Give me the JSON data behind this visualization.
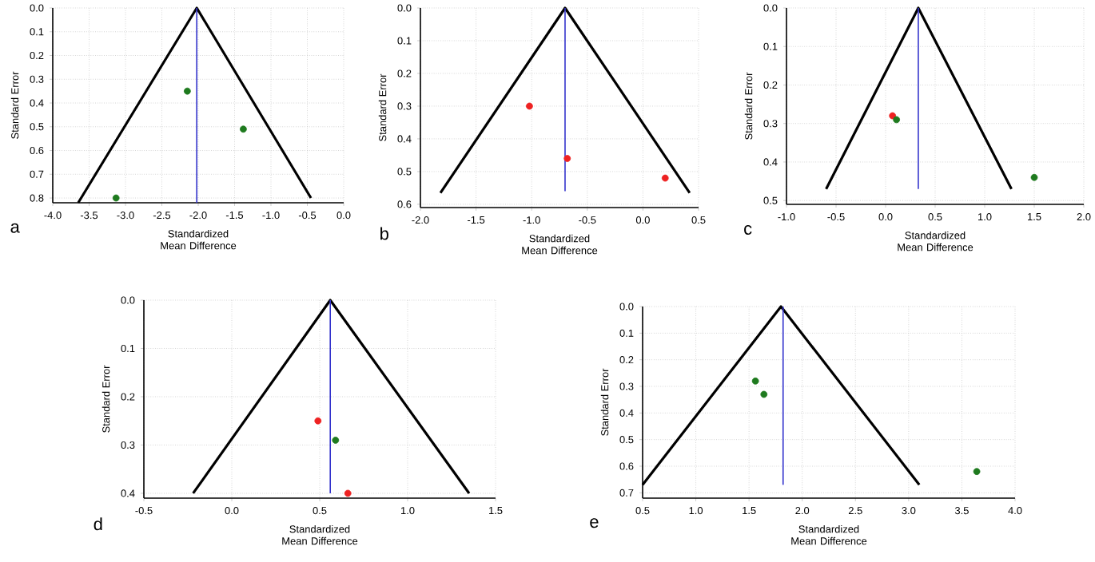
{
  "chart_data": [
    {
      "type": "scatter",
      "xlabel": "Standardized Mean Difference",
      "ylabel": "Standard Error",
      "annotations": [
        "a"
      ],
      "grid": true,
      "xlim": [
        -4.0,
        0.0
      ],
      "xticks": [
        {
          "value": -4.0,
          "label": "-4.0"
        },
        {
          "value": -3.5,
          "label": "-3.5"
        },
        {
          "value": -3.0,
          "label": "-3.0"
        },
        {
          "value": -2.5,
          "label": "-2.5"
        },
        {
          "value": -2.0,
          "label": "-2.0"
        },
        {
          "value": -1.5,
          "label": "-1.5"
        },
        {
          "value": -1.0,
          "label": "-1.0"
        },
        {
          "value": -0.5,
          "label": "-0.5"
        },
        {
          "value": 0.0,
          "label": "0.0"
        }
      ],
      "ylim": [
        0.82,
        0.0
      ],
      "yticks": [
        {
          "value": 0.0,
          "label": "0.0"
        },
        {
          "value": 0.1,
          "label": "0.1"
        },
        {
          "value": 0.2,
          "label": "0.2"
        },
        {
          "value": 0.3,
          "label": "0.3"
        },
        {
          "value": 0.4,
          "label": "0.4"
        },
        {
          "value": 0.5,
          "label": "0.5"
        },
        {
          "value": 0.6,
          "label": "0.6"
        },
        {
          "value": 0.7,
          "label": "0.7"
        },
        {
          "value": 0.8,
          "label": "0.8"
        }
      ],
      "series": [
        {
          "type": "line",
          "marker": "none",
          "color": "#000000",
          "x": [
            -3.65,
            -2.02,
            -0.45
          ],
          "values": [
            0.82,
            0.0,
            0.8
          ]
        },
        {
          "type": "line",
          "marker": "none",
          "color": "#3333cc",
          "x": [
            -2.02,
            -2.02
          ],
          "values": [
            0.0,
            0.82
          ]
        },
        {
          "type": "scatter",
          "x": [
            -2.15,
            -1.38,
            -3.13
          ],
          "values": [
            0.35,
            0.51,
            0.8
          ],
          "colors": [
            "#1e7a1e",
            "#1e7a1e",
            "#1e7a1e"
          ]
        }
      ]
    },
    {
      "type": "scatter",
      "xlabel": "Standardized Mean Difference",
      "ylabel": "Standard Error",
      "annotations": [
        "b"
      ],
      "grid": true,
      "xlim": [
        -2.0,
        0.5
      ],
      "xticks": [
        {
          "value": -2.0,
          "label": "-2.0"
        },
        {
          "value": -1.5,
          "label": "-1.5"
        },
        {
          "value": -1.0,
          "label": "-1.0"
        },
        {
          "value": -0.5,
          "label": "-0.5"
        },
        {
          "value": 0.0,
          "label": "0.0"
        },
        {
          "value": 0.5,
          "label": "0.5"
        }
      ],
      "ylim": [
        0.61,
        0.0
      ],
      "yticks": [
        {
          "value": 0.0,
          "label": "0.0"
        },
        {
          "value": 0.1,
          "label": "0.1"
        },
        {
          "value": 0.2,
          "label": "0.2"
        },
        {
          "value": 0.3,
          "label": "0.3"
        },
        {
          "value": 0.4,
          "label": "0.4"
        },
        {
          "value": 0.5,
          "label": "0.5"
        },
        {
          "value": 0.6,
          "label": "0.6"
        }
      ],
      "series": [
        {
          "type": "line",
          "marker": "none",
          "color": "#000000",
          "x": [
            -1.82,
            -0.7,
            0.42
          ],
          "values": [
            0.565,
            0.0,
            0.565
          ]
        },
        {
          "type": "line",
          "marker": "none",
          "color": "#3333cc",
          "x": [
            -0.7,
            -0.7
          ],
          "values": [
            0.0,
            0.56
          ]
        },
        {
          "type": "scatter",
          "x": [
            -1.02,
            -0.68,
            0.2
          ],
          "values": [
            0.3,
            0.46,
            0.52
          ],
          "colors": [
            "#ee2222",
            "#ee2222",
            "#ee2222"
          ]
        }
      ]
    },
    {
      "type": "scatter",
      "xlabel": "Standardized Mean Difference",
      "ylabel": "Standard Error",
      "annotations": [
        "c"
      ],
      "grid": true,
      "xlim": [
        -1.0,
        2.0
      ],
      "xticks": [
        {
          "value": -1.0,
          "label": "-1.0"
        },
        {
          "value": -0.5,
          "label": "-0.5"
        },
        {
          "value": 0.0,
          "label": "0.0"
        },
        {
          "value": 0.5,
          "label": "0.5"
        },
        {
          "value": 1.0,
          "label": "1.0"
        },
        {
          "value": 1.5,
          "label": "1.5"
        },
        {
          "value": 2.0,
          "label": "2.0"
        }
      ],
      "ylim": [
        0.51,
        0.0
      ],
      "yticks": [
        {
          "value": 0.0,
          "label": "0.0"
        },
        {
          "value": 0.1,
          "label": "0.1"
        },
        {
          "value": 0.2,
          "label": "0.2"
        },
        {
          "value": 0.3,
          "label": "0.3"
        },
        {
          "value": 0.4,
          "label": "0.4"
        },
        {
          "value": 0.5,
          "label": "0.5"
        }
      ],
      "series": [
        {
          "type": "line",
          "marker": "none",
          "color": "#000000",
          "x": [
            -0.6,
            0.33,
            1.27
          ],
          "values": [
            0.47,
            0.0,
            0.47
          ]
        },
        {
          "type": "line",
          "marker": "none",
          "color": "#3333cc",
          "x": [
            0.33,
            0.33
          ],
          "values": [
            0.0,
            0.47
          ]
        },
        {
          "type": "scatter",
          "x": [
            0.07,
            0.11,
            1.5
          ],
          "values": [
            0.28,
            0.29,
            0.44
          ],
          "colors": [
            "#ee2222",
            "#1e7a1e",
            "#1e7a1e"
          ]
        }
      ]
    },
    {
      "type": "scatter",
      "xlabel": "Standardized Mean Difference",
      "ylabel": "Standard Error",
      "annotations": [
        "d"
      ],
      "grid": true,
      "xlim": [
        -0.5,
        1.5
      ],
      "xticks": [
        {
          "value": -0.5,
          "label": "-0.5"
        },
        {
          "value": 0.0,
          "label": "0.0"
        },
        {
          "value": 0.5,
          "label": "0.5"
        },
        {
          "value": 1.0,
          "label": "1.0"
        },
        {
          "value": 1.5,
          "label": "1.5"
        }
      ],
      "ylim": [
        0.41,
        0.0
      ],
      "yticks": [
        {
          "value": 0.0,
          "label": "0.0"
        },
        {
          "value": 0.1,
          "label": "0.1"
        },
        {
          "value": 0.2,
          "label": "0.2"
        },
        {
          "value": 0.3,
          "label": "0.3"
        },
        {
          "value": 0.4,
          "label": "0.4"
        }
      ],
      "series": [
        {
          "type": "line",
          "marker": "none",
          "color": "#000000",
          "x": [
            -0.22,
            0.56,
            1.35
          ],
          "values": [
            0.4,
            0.0,
            0.4
          ]
        },
        {
          "type": "line",
          "marker": "none",
          "color": "#3333cc",
          "x": [
            0.56,
            0.56
          ],
          "values": [
            0.0,
            0.4
          ]
        },
        {
          "type": "scatter",
          "x": [
            0.49,
            0.59,
            0.66
          ],
          "values": [
            0.25,
            0.29,
            0.4
          ],
          "colors": [
            "#ee2222",
            "#1e7a1e",
            "#ee2222"
          ]
        }
      ]
    },
    {
      "type": "scatter",
      "xlabel": "Standardized Mean Difference",
      "ylabel": "Standard Error",
      "annotations": [
        "e"
      ],
      "grid": true,
      "xlim": [
        0.5,
        4.0
      ],
      "xticks": [
        {
          "value": 0.5,
          "label": "0.5"
        },
        {
          "value": 1.0,
          "label": "1.0"
        },
        {
          "value": 1.5,
          "label": "1.5"
        },
        {
          "value": 2.0,
          "label": "2.0"
        },
        {
          "value": 2.5,
          "label": "2.5"
        },
        {
          "value": 3.0,
          "label": "3.0"
        },
        {
          "value": 3.5,
          "label": "3.5"
        },
        {
          "value": 4.0,
          "label": "4.0"
        }
      ],
      "ylim": [
        0.72,
        0.0
      ],
      "yticks": [
        {
          "value": 0.0,
          "label": "0.0"
        },
        {
          "value": 0.1,
          "label": "0.1"
        },
        {
          "value": 0.2,
          "label": "0.2"
        },
        {
          "value": 0.3,
          "label": "0.3"
        },
        {
          "value": 0.4,
          "label": "0.4"
        },
        {
          "value": 0.5,
          "label": "0.5"
        },
        {
          "value": 0.6,
          "label": "0.6"
        },
        {
          "value": 0.7,
          "label": "0.7"
        }
      ],
      "series": [
        {
          "type": "line",
          "marker": "none",
          "color": "#000000",
          "x": [
            0.5,
            1.8,
            3.1
          ],
          "values": [
            0.67,
            0.0,
            0.67
          ]
        },
        {
          "type": "line",
          "marker": "none",
          "color": "#3333cc",
          "x": [
            1.82,
            1.82
          ],
          "values": [
            0.0,
            0.67
          ]
        },
        {
          "type": "scatter",
          "x": [
            1.56,
            1.64,
            3.64
          ],
          "values": [
            0.28,
            0.33,
            0.62
          ],
          "colors": [
            "#1e7a1e",
            "#1e7a1e",
            "#1e7a1e"
          ]
        }
      ]
    }
  ]
}
